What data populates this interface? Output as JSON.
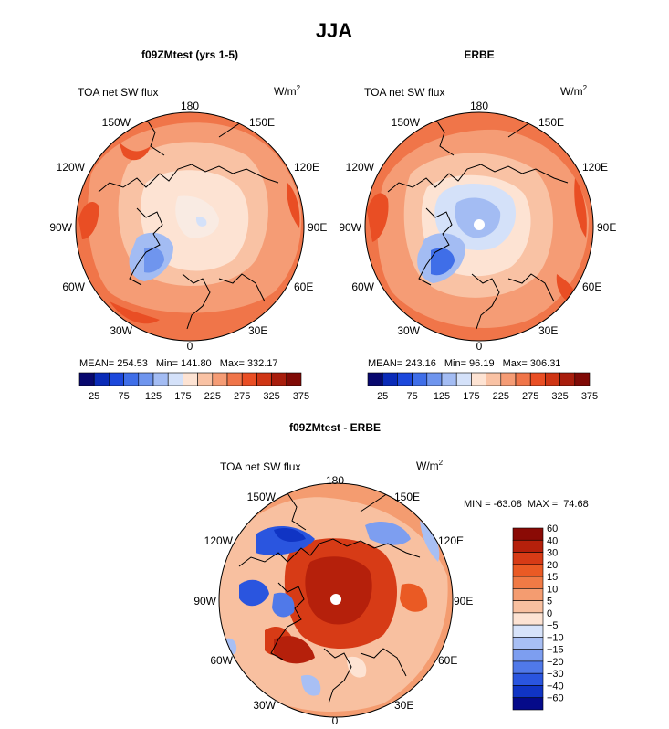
{
  "page": {
    "title": "JJA"
  },
  "chart_data": [
    {
      "type": "heatmap",
      "projection": "north-polar-stereographic",
      "title": "f09ZMtest (yrs 1-5)",
      "variable": "TOA net SW flux",
      "units": "W/m",
      "units_exp": "2",
      "longitude_labels": [
        "180",
        "150E",
        "120E",
        "90E",
        "60E",
        "30E",
        "0",
        "30W",
        "60W",
        "90W",
        "120W",
        "150W"
      ],
      "stats": {
        "mean_label": "MEAN=",
        "mean": "254.53",
        "min_label": "Min=",
        "min": "141.80",
        "max_label": "Max=",
        "max": "332.17"
      },
      "colorbar": {
        "orientation": "horizontal",
        "levels": [
          25,
          50,
          75,
          100,
          125,
          150,
          175,
          200,
          225,
          250,
          275,
          300,
          325,
          350,
          375
        ],
        "tick_labels": [
          "25",
          "75",
          "125",
          "175",
          "225",
          "275",
          "325",
          "375"
        ]
      }
    },
    {
      "type": "heatmap",
      "projection": "north-polar-stereographic",
      "title": "ERBE",
      "variable": "TOA net SW flux",
      "units": "W/m",
      "units_exp": "2",
      "longitude_labels": [
        "180",
        "150E",
        "120E",
        "90E",
        "60E",
        "30E",
        "0",
        "30W",
        "60W",
        "90W",
        "120W",
        "150W"
      ],
      "stats": {
        "mean_label": "MEAN=",
        "mean": "243.16",
        "min_label": "Min=",
        "min": "96.19",
        "max_label": "Max=",
        "max": "306.31"
      },
      "colorbar": {
        "orientation": "horizontal",
        "levels": [
          25,
          50,
          75,
          100,
          125,
          150,
          175,
          200,
          225,
          250,
          275,
          300,
          325,
          350,
          375
        ],
        "tick_labels": [
          "25",
          "75",
          "125",
          "175",
          "225",
          "275",
          "325",
          "375"
        ]
      }
    },
    {
      "type": "heatmap",
      "projection": "north-polar-stereographic",
      "title": "f09ZMtest - ERBE",
      "variable": "TOA net SW flux",
      "units": "W/m",
      "units_exp": "2",
      "longitude_labels": [
        "180",
        "150E",
        "120E",
        "90E",
        "60E",
        "30E",
        "0",
        "30W",
        "60W",
        "90W",
        "120W",
        "150W"
      ],
      "stats": {
        "min_label": "MIN =",
        "min": "-63.08",
        "max_label": "MAX =",
        "max": "74.68"
      },
      "colorbar": {
        "orientation": "vertical",
        "levels": [
          60,
          40,
          30,
          20,
          15,
          10,
          5,
          0,
          -5,
          -10,
          -15,
          -20,
          -30,
          -40,
          -60
        ],
        "tick_labels": [
          "60",
          "40",
          "30",
          "20",
          "15",
          "10",
          "5",
          "0",
          "−5",
          "−10",
          "−15",
          "−20",
          "−30",
          "−40",
          "−60"
        ]
      }
    }
  ],
  "colors": {
    "abs_scale": [
      "#08086e",
      "#0a2bb8",
      "#1c48dc",
      "#3f6ee8",
      "#6f95ee",
      "#a3bcf3",
      "#d4e1f9",
      "#fde3d3",
      "#f9c2a4",
      "#f59c75",
      "#f07549",
      "#e94e24",
      "#cf3514",
      "#a81d0c",
      "#800a06"
    ],
    "diff_scale": [
      "#8a0a05",
      "#b5200b",
      "#d73b16",
      "#ea5a24",
      "#f07a45",
      "#f49c70",
      "#f8c0a0",
      "#fde3d3",
      "#d7e3fa",
      "#a8bff4",
      "#7d9ef0",
      "#5079e9",
      "#2a55df",
      "#1034c4",
      "#050a8a"
    ]
  }
}
